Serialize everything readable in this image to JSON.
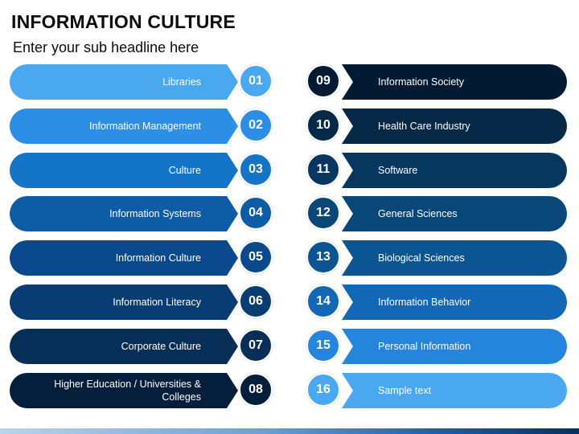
{
  "header": {
    "title": "INFORMATION CULTURE",
    "subtitle": "Enter your sub headline here"
  },
  "left_items": [
    {
      "number": "01",
      "label": "Libraries",
      "color": "#4aa8f0",
      "badge_color": "#4aa8f0"
    },
    {
      "number": "02",
      "label": "Information Management",
      "color": "#2d8ee6",
      "badge_color": "#2d8ee6"
    },
    {
      "number": "03",
      "label": "Culture",
      "color": "#1474c8",
      "badge_color": "#1474c8"
    },
    {
      "number": "04",
      "label": "Information Systems",
      "color": "#0e5ba6",
      "badge_color": "#0e5ba6"
    },
    {
      "number": "05",
      "label": "Information Culture",
      "color": "#0a4a8c",
      "badge_color": "#0a4a8c"
    },
    {
      "number": "06",
      "label": "Information Literacy",
      "color": "#083c72",
      "badge_color": "#083c72"
    },
    {
      "number": "07",
      "label": "Corporate Culture",
      "color": "#062e57",
      "badge_color": "#062e57"
    },
    {
      "number": "08",
      "label": "Higher Education / Universities & Colleges",
      "color": "#041f3c",
      "badge_color": "#041f3c"
    }
  ],
  "right_items": [
    {
      "number": "09",
      "label": "Information Society",
      "color": "#031a33",
      "badge_color": "#031a33"
    },
    {
      "number": "10",
      "label": "Health Care Industry",
      "color": "#052947",
      "badge_color": "#052947"
    },
    {
      "number": "11",
      "label": "Software",
      "color": "#07375f",
      "badge_color": "#07375f"
    },
    {
      "number": "12",
      "label": "General Sciences",
      "color": "#094779",
      "badge_color": "#094779"
    },
    {
      "number": "13",
      "label": "Biological Sciences",
      "color": "#0b5593",
      "badge_color": "#0b5593"
    },
    {
      "number": "14",
      "label": "Information Behavior",
      "color": "#1268b4",
      "badge_color": "#1268b4"
    },
    {
      "number": "15",
      "label": "Personal Information",
      "color": "#2584dc",
      "badge_color": "#2584dc"
    },
    {
      "number": "16",
      "label": "Sample text",
      "color": "#4aa8f0",
      "badge_color": "#4aa8f0"
    }
  ]
}
